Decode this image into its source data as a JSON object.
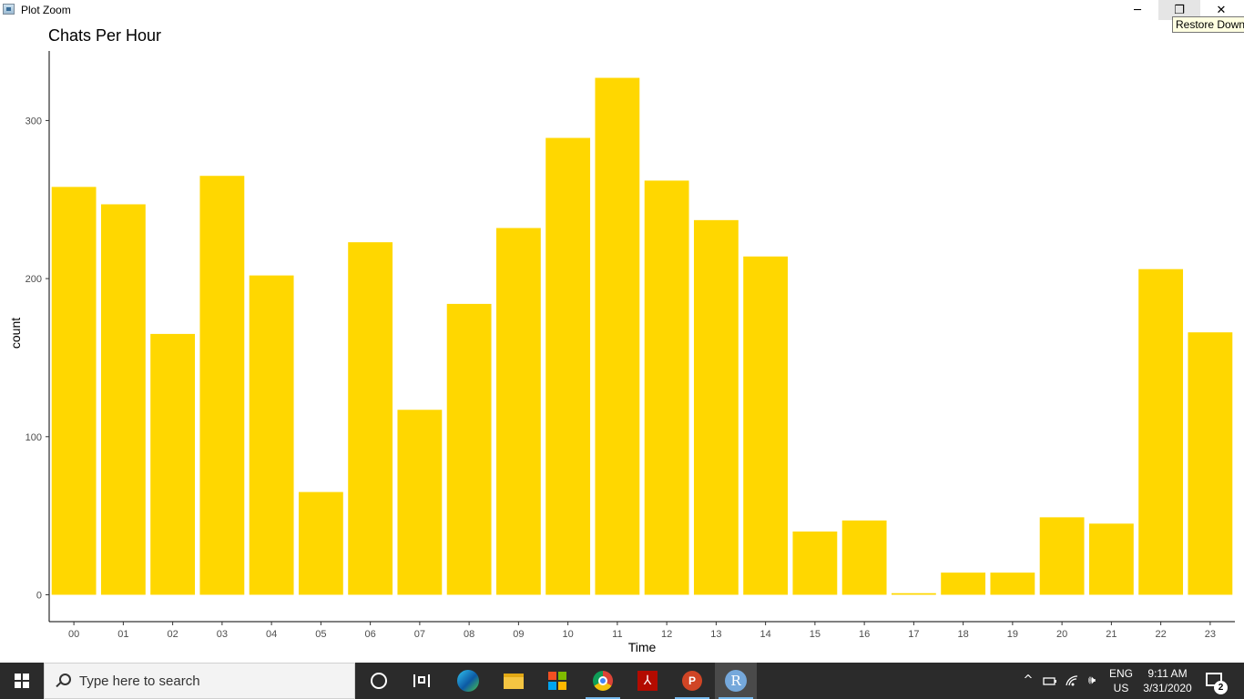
{
  "window": {
    "title": "Plot Zoom",
    "tooltip": "Restore Down",
    "minimize_glyph": "─",
    "restore_glyph": "❐",
    "close_glyph": "✕"
  },
  "chart_data": {
    "type": "bar",
    "title": "Chats Per Hour",
    "xlabel": "Time",
    "ylabel": "count",
    "categories": [
      "00",
      "01",
      "02",
      "03",
      "04",
      "05",
      "06",
      "07",
      "08",
      "09",
      "10",
      "11",
      "12",
      "13",
      "14",
      "15",
      "16",
      "17",
      "18",
      "19",
      "20",
      "21",
      "22",
      "23"
    ],
    "values": [
      258,
      247,
      165,
      265,
      202,
      65,
      223,
      117,
      184,
      232,
      289,
      327,
      262,
      237,
      214,
      40,
      47,
      1,
      14,
      14,
      49,
      45,
      206,
      166
    ],
    "yticks": [
      0,
      100,
      200,
      300
    ],
    "ylim": [
      -17,
      344
    ],
    "bar_color": "#FFD700",
    "grid": false,
    "legend": "none"
  },
  "taskbar": {
    "search_placeholder": "Type here to search",
    "apps": [
      "start-icon",
      "cortana-icon",
      "task-view-icon",
      "edge-icon",
      "file-explorer-icon",
      "store-icon",
      "chrome-icon",
      "acrobat-icon",
      "powerpoint-icon",
      "r-icon"
    ],
    "acrobat_glyph": "⅄",
    "powerpoint_glyph": "P",
    "r_glyph": "R",
    "language_line1": "ENG",
    "language_line2": "US",
    "time": "9:11 AM",
    "date": "3/31/2020",
    "notification_count": "2",
    "tray_glyphs": {
      "chevron": "^",
      "volume": "🕪"
    }
  }
}
